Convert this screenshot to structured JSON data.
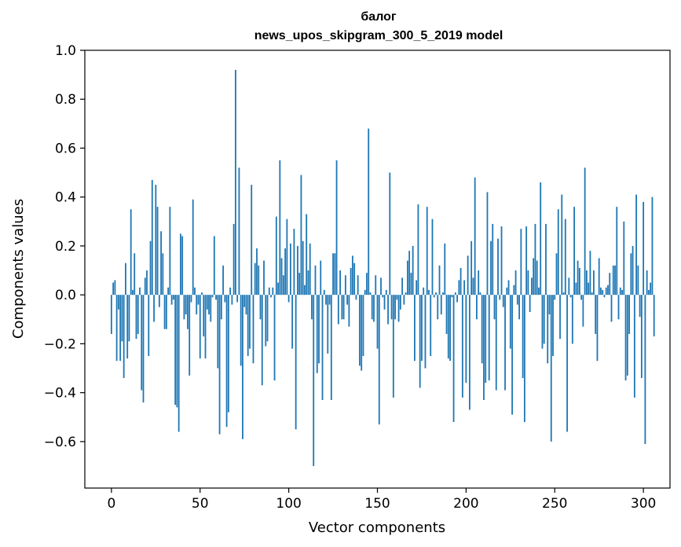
{
  "chart_data": {
    "type": "bar",
    "title_lines": [
      "балог",
      "news_upos_skipgram_300_5_2019 model"
    ],
    "xlabel": "Vector components",
    "ylabel": "Components values",
    "xlim": [
      -15,
      315
    ],
    "ylim": [
      -0.79,
      1.0
    ],
    "xticks": [
      0,
      50,
      100,
      150,
      200,
      250,
      300
    ],
    "yticks": [
      -0.6,
      -0.4,
      -0.2,
      0.0,
      0.2,
      0.4,
      0.6,
      0.8,
      1.0
    ],
    "ytick_labels": [
      "−0.6",
      "−0.4",
      "−0.2",
      "0.0",
      "0.2",
      "0.4",
      "0.6",
      "0.8",
      "1.0"
    ],
    "grid": false,
    "color": "#1f77b4",
    "values": [
      -0.16,
      0.05,
      0.06,
      -0.27,
      -0.06,
      -0.27,
      -0.19,
      -0.34,
      0.13,
      -0.26,
      -0.19,
      0.35,
      0.02,
      0.17,
      -0.18,
      -0.16,
      0.03,
      -0.39,
      -0.44,
      0.07,
      0.1,
      -0.25,
      0.22,
      0.47,
      -0.11,
      0.45,
      0.36,
      -0.05,
      0.26,
      0.17,
      -0.14,
      -0.14,
      0.03,
      0.36,
      -0.04,
      -0.02,
      -0.45,
      -0.46,
      -0.56,
      0.25,
      0.24,
      -0.1,
      -0.08,
      -0.14,
      -0.33,
      -0.03,
      0.39,
      0.03,
      -0.08,
      -0.04,
      -0.26,
      0.01,
      -0.17,
      -0.26,
      -0.06,
      -0.08,
      -0.11,
      -0.01,
      0.24,
      -0.02,
      -0.3,
      -0.57,
      -0.1,
      0.12,
      -0.03,
      -0.54,
      -0.48,
      0.03,
      -0.04,
      0.29,
      0.92,
      -0.03,
      0.52,
      -0.29,
      -0.59,
      -0.05,
      -0.08,
      -0.25,
      -0.22,
      0.45,
      -0.28,
      0.13,
      0.19,
      0.12,
      -0.1,
      -0.37,
      0.14,
      -0.21,
      -0.19,
      0.03,
      -0.01,
      0.03,
      -0.35,
      0.32,
      0.05,
      0.55,
      0.15,
      0.08,
      0.19,
      0.31,
      -0.03,
      0.21,
      -0.22,
      0.27,
      -0.55,
      0.2,
      0.09,
      0.49,
      0.22,
      0.04,
      0.33,
      0.1,
      0.21,
      -0.1,
      -0.7,
      0.12,
      -0.32,
      -0.28,
      0.14,
      -0.43,
      0.02,
      -0.04,
      -0.24,
      -0.04,
      -0.43,
      0.17,
      0.17,
      0.55,
      -0.12,
      0.1,
      -0.1,
      -0.1,
      0.08,
      -0.04,
      -0.13,
      0.11,
      0.16,
      0.13,
      -0.02,
      0.08,
      -0.29,
      -0.31,
      -0.25,
      0.02,
      0.09,
      0.68,
      0.01,
      -0.1,
      -0.11,
      0.08,
      -0.22,
      -0.53,
      0.07,
      -0.01,
      -0.06,
      0.02,
      -0.12,
      0.5,
      -0.1,
      -0.42,
      -0.1,
      -0.02,
      -0.11,
      -0.06,
      0.07,
      -0.04,
      0.01,
      0.14,
      0.18,
      0.09,
      0.2,
      -0.27,
      0.06,
      0.37,
      -0.38,
      -0.27,
      0.03,
      -0.3,
      0.36,
      0.02,
      -0.25,
      0.31,
      -0.01,
      0.01,
      -0.1,
      0.12,
      -0.08,
      0.01,
      0.21,
      -0.16,
      -0.26,
      -0.27,
      -0.01,
      -0.52,
      0.01,
      -0.03,
      0.06,
      0.11,
      -0.42,
      0.06,
      -0.36,
      0.16,
      -0.47,
      0.22,
      0.07,
      0.48,
      -0.1,
      0.1,
      0.01,
      -0.28,
      -0.43,
      -0.36,
      0.42,
      -0.35,
      0.22,
      0.29,
      -0.1,
      -0.39,
      0.23,
      -0.02,
      0.28,
      -0.05,
      -0.39,
      0.03,
      0.06,
      -0.22,
      -0.49,
      0.04,
      0.1,
      -0.04,
      -0.1,
      0.27,
      -0.34,
      -0.52,
      0.28,
      0.1,
      -0.07,
      0.07,
      0.15,
      0.29,
      0.14,
      0.03,
      0.46,
      -0.22,
      -0.2,
      0.29,
      -0.28,
      -0.08,
      -0.6,
      -0.25,
      -0.02,
      0.17,
      0.35,
      -0.18,
      0.41,
      0.01,
      0.31,
      -0.56,
      0.07,
      -0.01,
      -0.2,
      0.36,
      0.05,
      0.14,
      0.11,
      -0.02,
      -0.13,
      0.52,
      0.1,
      0.05,
      0.18,
      0.01,
      0.1,
      -0.16,
      -0.27,
      0.15,
      0.03,
      0.02,
      -0.01,
      0.03,
      0.04,
      0.09,
      -0.11,
      0.12,
      0.12,
      0.36,
      -0.1,
      0.03,
      0.02,
      0.3,
      -0.35,
      -0.33,
      -0.16,
      0.17,
      0.2,
      -0.42,
      0.41,
      0.12,
      -0.09,
      -0.34,
      0.38,
      -0.61,
      0.1,
      0.02,
      0.05,
      0.4,
      -0.17
    ]
  }
}
